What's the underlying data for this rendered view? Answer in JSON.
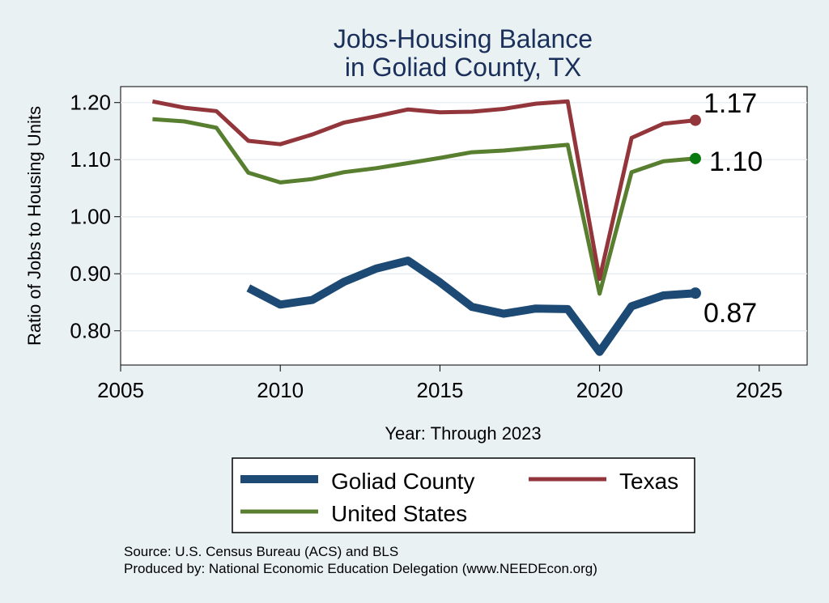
{
  "chart_data": {
    "type": "line",
    "title": [
      "Jobs-Housing Balance",
      "in Goliad County, TX"
    ],
    "xlabel": "Year: Through 2023",
    "ylabel": "Ratio of Jobs to Housing Units",
    "xlim": [
      2005,
      2026.5
    ],
    "ylim": [
      0.74,
      1.228
    ],
    "xticks": [
      2005,
      2010,
      2015,
      2020,
      2025
    ],
    "yticks": [
      0.8,
      0.9,
      1.0,
      1.1,
      1.2
    ],
    "ytick_labels": [
      "0.80",
      "0.90",
      "1.00",
      "1.10",
      "1.20"
    ],
    "grid": true,
    "legend_position": "bottom",
    "series": [
      {
        "name": "Goliad County",
        "color": "#1c4a74",
        "width": "thick",
        "x": [
          2009,
          2010,
          2011,
          2012,
          2013,
          2014,
          2015,
          2016,
          2017,
          2018,
          2019,
          2020,
          2021,
          2022,
          2023
        ],
        "values": [
          0.875,
          0.846,
          0.854,
          0.886,
          0.909,
          0.923,
          0.885,
          0.842,
          0.83,
          0.839,
          0.838,
          0.763,
          0.843,
          0.862,
          0.866
        ],
        "end_label": "0.87"
      },
      {
        "name": "Texas",
        "color": "#93363b",
        "width": "medium",
        "x": [
          2006,
          2007,
          2008,
          2009,
          2010,
          2011,
          2012,
          2013,
          2014,
          2015,
          2016,
          2017,
          2018,
          2019,
          2020,
          2021,
          2022,
          2023
        ],
        "values": [
          1.202,
          1.191,
          1.185,
          1.133,
          1.127,
          1.144,
          1.165,
          1.176,
          1.188,
          1.183,
          1.184,
          1.189,
          1.198,
          1.202,
          0.891,
          1.138,
          1.163,
          1.169
        ],
        "end_label": "1.17"
      },
      {
        "name": "United States",
        "color": "#587e30",
        "width": "medium",
        "x": [
          2006,
          2007,
          2008,
          2009,
          2010,
          2011,
          2012,
          2013,
          2014,
          2015,
          2016,
          2017,
          2018,
          2019,
          2020,
          2021,
          2022,
          2023
        ],
        "values": [
          1.171,
          1.167,
          1.156,
          1.077,
          1.06,
          1.066,
          1.078,
          1.085,
          1.094,
          1.103,
          1.113,
          1.116,
          1.121,
          1.126,
          0.865,
          1.078,
          1.097,
          1.102
        ],
        "end_label": "1.10"
      }
    ],
    "end_marker_colors": [
      "#1c4a74",
      "#93363b",
      "#0a7a10"
    ],
    "source_lines": [
      "Source: U.S. Census Bureau (ACS) and BLS",
      "Produced by: National Economic Education Delegation (www.NEEDEcon.org)"
    ]
  }
}
